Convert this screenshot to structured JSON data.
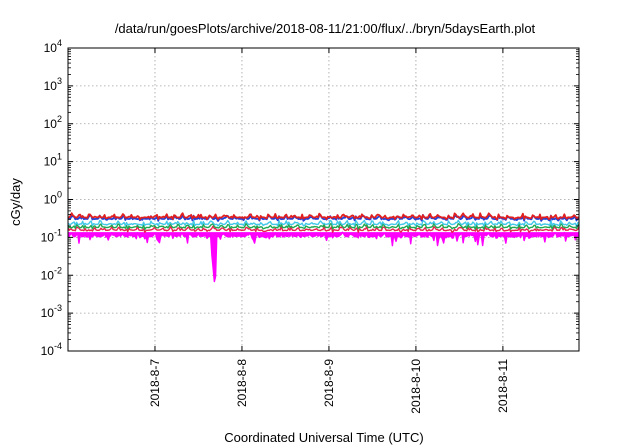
{
  "chart_data": {
    "type": "line",
    "title": "/data/run/goesPlots/archive/2018-08-11/21:00/flux/../bryn/5daysEarth.plot",
    "xlabel": "Coordinated Universal Time (UTC)",
    "ylabel": "cGy/day",
    "yscale": "log",
    "ylim": [
      0.0001,
      10000
    ],
    "xlim": [
      "2018-08-06T00:00",
      "2018-08-11T21:00"
    ],
    "grid": true,
    "legend": "none",
    "yticks": [
      {
        "base": "10",
        "exp": "-4",
        "value": 0.0001
      },
      {
        "base": "10",
        "exp": "-3",
        "value": 0.001
      },
      {
        "base": "10",
        "exp": "-2",
        "value": 0.01
      },
      {
        "base": "10",
        "exp": "-1",
        "value": 0.1
      },
      {
        "base": "10",
        "exp": "0",
        "value": 1
      },
      {
        "base": "10",
        "exp": "1",
        "value": 10
      },
      {
        "base": "10",
        "exp": "2",
        "value": 100
      },
      {
        "base": "10",
        "exp": "3",
        "value": 1000
      },
      {
        "base": "10",
        "exp": "4",
        "value": 10000
      }
    ],
    "xticks": [
      {
        "label": "2018-8-7",
        "date": "2018-08-07T00:00"
      },
      {
        "label": "2018-8-8",
        "date": "2018-08-08T00:00"
      },
      {
        "label": "2018-8-9",
        "date": "2018-08-09T00:00"
      },
      {
        "label": "2018-8-10",
        "date": "2018-08-10T00:00"
      },
      {
        "label": "2018-8-11",
        "date": "2018-08-11T00:00"
      }
    ],
    "series": [
      {
        "color": "#ff00ff",
        "baseline": 0.11,
        "fill_to_lower_envelope": true,
        "dips": [
          {
            "date": "2018-08-07T16:30",
            "value": 0.004
          },
          {
            "date": "2018-08-07T16:00",
            "value": 0.012
          },
          {
            "date": "2018-08-08T03:00",
            "value": 0.045
          },
          {
            "date": "2018-08-10T06:00",
            "value": 0.05
          },
          {
            "date": "2018-08-10T05:00",
            "value": 0.065
          },
          {
            "date": "2018-08-06T03:00",
            "value": 0.06
          },
          {
            "date": "2018-08-06T01:30",
            "value": 0.06
          },
          {
            "date": "2018-08-06T06:00",
            "value": 0.065
          },
          {
            "date": "2018-08-06T09:00",
            "value": 0.07
          },
          {
            "date": "2018-08-06T15:00",
            "value": 0.07
          },
          {
            "date": "2018-08-09T07:00",
            "value": 0.07
          },
          {
            "date": "2018-08-08T12:00",
            "value": 0.08
          }
        ]
      },
      {
        "color": "#e6244c",
        "baseline": 0.16
      },
      {
        "color": "#1fa850",
        "baseline": 0.19
      },
      {
        "color": "#40c8e8",
        "baseline": 0.23
      },
      {
        "color": "#2040d8",
        "baseline": 0.32
      },
      {
        "color": "#e02020",
        "baseline": 0.35
      }
    ]
  }
}
